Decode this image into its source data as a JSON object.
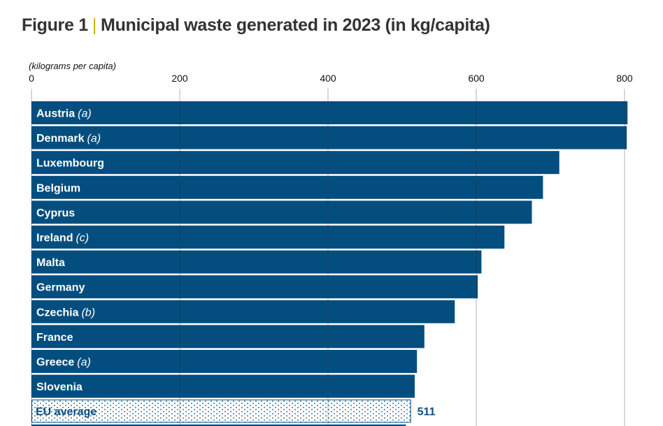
{
  "figure": {
    "label": "Figure 1",
    "separator": "|",
    "title": "Municipal waste generated in 2023 (in kg/capita)"
  },
  "chart_data": {
    "type": "bar",
    "orientation": "horizontal",
    "title": "Municipal waste generated in 2023 (in kg/capita)",
    "xlabel": "(kilograms per capita)",
    "ylabel": "",
    "xlim": [
      0,
      800
    ],
    "xticks": [
      0,
      200,
      400,
      600,
      800
    ],
    "grid": true,
    "categories": [
      "Austria",
      "Denmark",
      "Luxembourg",
      "Belgium",
      "Cyprus",
      "Ireland",
      "Malta",
      "Germany",
      "Czechia",
      "France",
      "Greece",
      "Slovenia",
      "EU average",
      ""
    ],
    "notes": [
      "(a)",
      "(a)",
      "",
      "",
      "",
      "(c)",
      "",
      "",
      "(b)",
      "",
      "(a)",
      "",
      "",
      ""
    ],
    "values": [
      804,
      803,
      712,
      690,
      675,
      638,
      607,
      602,
      571,
      530,
      520,
      517,
      511,
      505
    ],
    "highlight": {
      "category": "EU average",
      "value_label": "511"
    },
    "colors": {
      "bar": "#044e7f",
      "grid": "#333333",
      "eu_text": "#0b4d7e"
    }
  }
}
